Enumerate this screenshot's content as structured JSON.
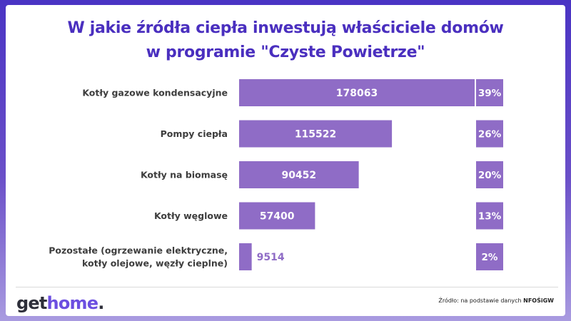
{
  "title": {
    "line1": "W jakie źródła ciepła inwestują właściciele domów",
    "line2": "w programie \"Czyste Powietrze\""
  },
  "chart_data": {
    "type": "bar",
    "orientation": "horizontal",
    "categories": [
      [
        "Kotły gazowe kondensacyjne"
      ],
      [
        "Pompy ciepła"
      ],
      [
        "Kotły na biomasę"
      ],
      [
        "Kotły węglowe"
      ],
      [
        "Pozostałe (ogrzewanie elektryczne,",
        "kotły olejowe, węzły cieplne)"
      ]
    ],
    "values": [
      178063,
      115522,
      90452,
      57400,
      9514
    ],
    "percentages": [
      "39%",
      "26%",
      "20%",
      "13%",
      "2%"
    ],
    "xlim": [
      0,
      178063
    ],
    "colors": {
      "bar": "#8f6cc6",
      "label_inside": "#ffffff",
      "label_outside": "#8f6cc6"
    }
  },
  "footer": {
    "logo_get": "get",
    "logo_home": "home",
    "logo_dot": ".",
    "source_prefix": "Źródło: na podstawie danych ",
    "source_org": "NFOŚiGW"
  }
}
